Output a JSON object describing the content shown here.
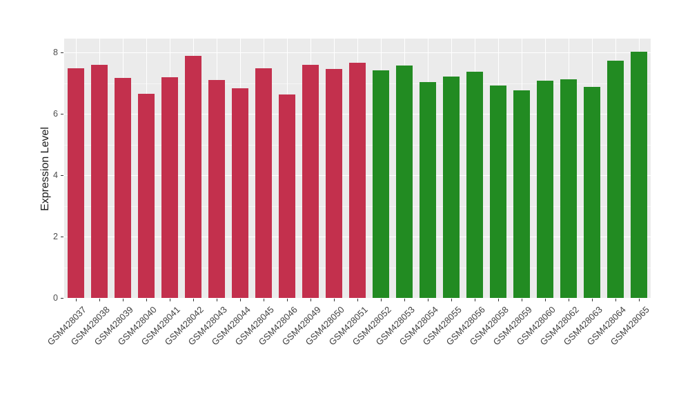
{
  "chart_data": {
    "type": "bar",
    "title": "",
    "xlabel": "",
    "ylabel": "Expression Level",
    "ylim": [
      0,
      8.45
    ],
    "yticks_major": [
      0,
      2,
      4,
      6,
      8
    ],
    "yticks_minor": [
      1,
      3,
      5,
      7
    ],
    "ytick_labels": [
      "0",
      "2",
      "4",
      "6",
      "8"
    ],
    "legend": "none",
    "grid": "white major+minor horizontal lines and white vertical lines at category centers on gray panel; bars drawn over gridlines",
    "panel_background": "#EBEBEB",
    "grid_color": "#FFFFFF",
    "bar_width_fraction": 0.7,
    "palette": {
      "group1": "#C3304D",
      "group2": "#228B22"
    },
    "categories": [
      "GSM428037",
      "GSM428038",
      "GSM428039",
      "GSM428040",
      "GSM428041",
      "GSM428042",
      "GSM428043",
      "GSM428044",
      "GSM428045",
      "GSM428046",
      "GSM428049",
      "GSM428050",
      "GSM428051",
      "GSM428052",
      "GSM428053",
      "GSM428054",
      "GSM428055",
      "GSM428056",
      "GSM428058",
      "GSM428059",
      "GSM428060",
      "GSM428062",
      "GSM428063",
      "GSM428064",
      "GSM428065"
    ],
    "values": [
      7.48,
      7.59,
      7.16,
      6.65,
      7.2,
      7.89,
      7.1,
      6.84,
      7.48,
      6.62,
      7.59,
      7.45,
      7.66,
      7.41,
      7.58,
      7.03,
      7.21,
      7.38,
      6.92,
      6.77,
      7.08,
      7.13,
      6.87,
      7.72,
      8.03
    ],
    "bar_groups": [
      "group1",
      "group1",
      "group1",
      "group1",
      "group1",
      "group1",
      "group1",
      "group1",
      "group1",
      "group1",
      "group1",
      "group1",
      "group1",
      "group2",
      "group2",
      "group2",
      "group2",
      "group2",
      "group2",
      "group2",
      "group2",
      "group2",
      "group2",
      "group2",
      "group2"
    ]
  }
}
